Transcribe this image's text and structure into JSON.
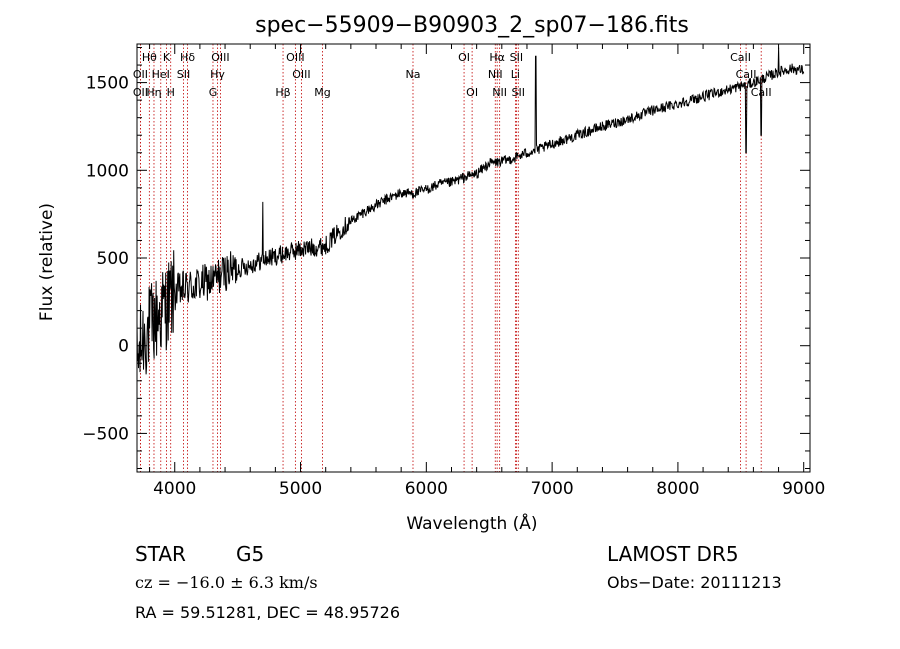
{
  "chart_data": {
    "type": "line",
    "title": "spec−55909−B90903_2_sp07−186.fits",
    "xlabel": "Wavelength (Å)",
    "ylabel": "Flux (relative)",
    "xlim": [
      3700,
      9050
    ],
    "ylim": [
      -720,
      1720
    ],
    "grid": false,
    "x_ticks": [
      4000,
      5000,
      6000,
      7000,
      8000,
      9000
    ],
    "y_ticks": [
      -500,
      0,
      500,
      1000,
      1500
    ],
    "x_tick_labels": [
      "4000",
      "5000",
      "6000",
      "7000",
      "8000",
      "9000"
    ],
    "y_tick_labels": [
      "−500",
      "0",
      "500",
      "1000",
      "1500"
    ],
    "series": [
      {
        "color": "#000000",
        "x": [
          3700,
          3750,
          3800,
          3850,
          3900,
          3950,
          4000,
          4100,
          4200,
          4300,
          4400,
          4500,
          4600,
          4700,
          4800,
          4900,
          5000,
          5100,
          5200,
          5300,
          5400,
          5500,
          5600,
          5700,
          5800,
          5900,
          6000,
          6100,
          6200,
          6300,
          6400,
          6500,
          6600,
          6700,
          6800,
          6900,
          7000,
          7200,
          7400,
          7600,
          7800,
          8000,
          8200,
          8400,
          8500,
          8600,
          8700,
          8800,
          8900,
          9000
        ],
        "y": [
          -100,
          50,
          100,
          150,
          200,
          250,
          300,
          330,
          350,
          370,
          420,
          440,
          460,
          490,
          510,
          530,
          550,
          560,
          570,
          650,
          710,
          760,
          800,
          840,
          870,
          870,
          890,
          920,
          930,
          960,
          980,
          1040,
          1050,
          1070,
          1100,
          1120,
          1150,
          1200,
          1250,
          1290,
          1340,
          1380,
          1420,
          1460,
          1480,
          1500,
          1530,
          1560,
          1580,
          1570
        ]
      }
    ],
    "annotations": [
      {
        "x": 3798,
        "label": "Hθ",
        "row": 0
      },
      {
        "x": 3727,
        "label": "OII",
        "row": 1
      },
      {
        "x": 3727,
        "label": "OII",
        "row": 2
      },
      {
        "x": 3835,
        "label": "Hη",
        "row": 2
      },
      {
        "x": 3889,
        "label": "HeI",
        "row": 1
      },
      {
        "x": 3934,
        "label": "K",
        "row": 0
      },
      {
        "x": 3968,
        "label": "H",
        "row": 2
      },
      {
        "x": 4102,
        "label": "Hδ",
        "row": 0
      },
      {
        "x": 4070,
        "label": "SII",
        "row": 1
      },
      {
        "x": 4340,
        "label": "Hγ",
        "row": 1
      },
      {
        "x": 4304,
        "label": "G",
        "row": 2
      },
      {
        "x": 4363,
        "label": "OIII",
        "row": 0
      },
      {
        "x": 4861,
        "label": "Hβ",
        "row": 2
      },
      {
        "x": 4959,
        "label": "OIII",
        "row": 0
      },
      {
        "x": 5007,
        "label": "OIII",
        "row": 1
      },
      {
        "x": 5175,
        "label": "Mg",
        "row": 2
      },
      {
        "x": 5894,
        "label": "Na",
        "row": 1
      },
      {
        "x": 6300,
        "label": "OI",
        "row": 0
      },
      {
        "x": 6364,
        "label": "OI",
        "row": 2
      },
      {
        "x": 6563,
        "label": "Hα",
        "row": 0
      },
      {
        "x": 6548,
        "label": "NII",
        "row": 1
      },
      {
        "x": 6583,
        "label": "NII",
        "row": 2
      },
      {
        "x": 6708,
        "label": "Li",
        "row": 1
      },
      {
        "x": 6716,
        "label": "SII",
        "row": 0
      },
      {
        "x": 6731,
        "label": "SII",
        "row": 2
      },
      {
        "x": 8498,
        "label": "CaII",
        "row": 0
      },
      {
        "x": 8542,
        "label": "CaII",
        "row": 1
      },
      {
        "x": 8662,
        "label": "CaII",
        "row": 2
      }
    ]
  },
  "info": {
    "object_class": "STAR",
    "subclass": "G5",
    "survey": "LAMOST DR5",
    "redshift_text": "cz = −16.0 ± 6.3 km/s",
    "obs_date": "Obs−Date: 20111213",
    "coords": "RA =  59.51281, DEC =  48.95726"
  }
}
